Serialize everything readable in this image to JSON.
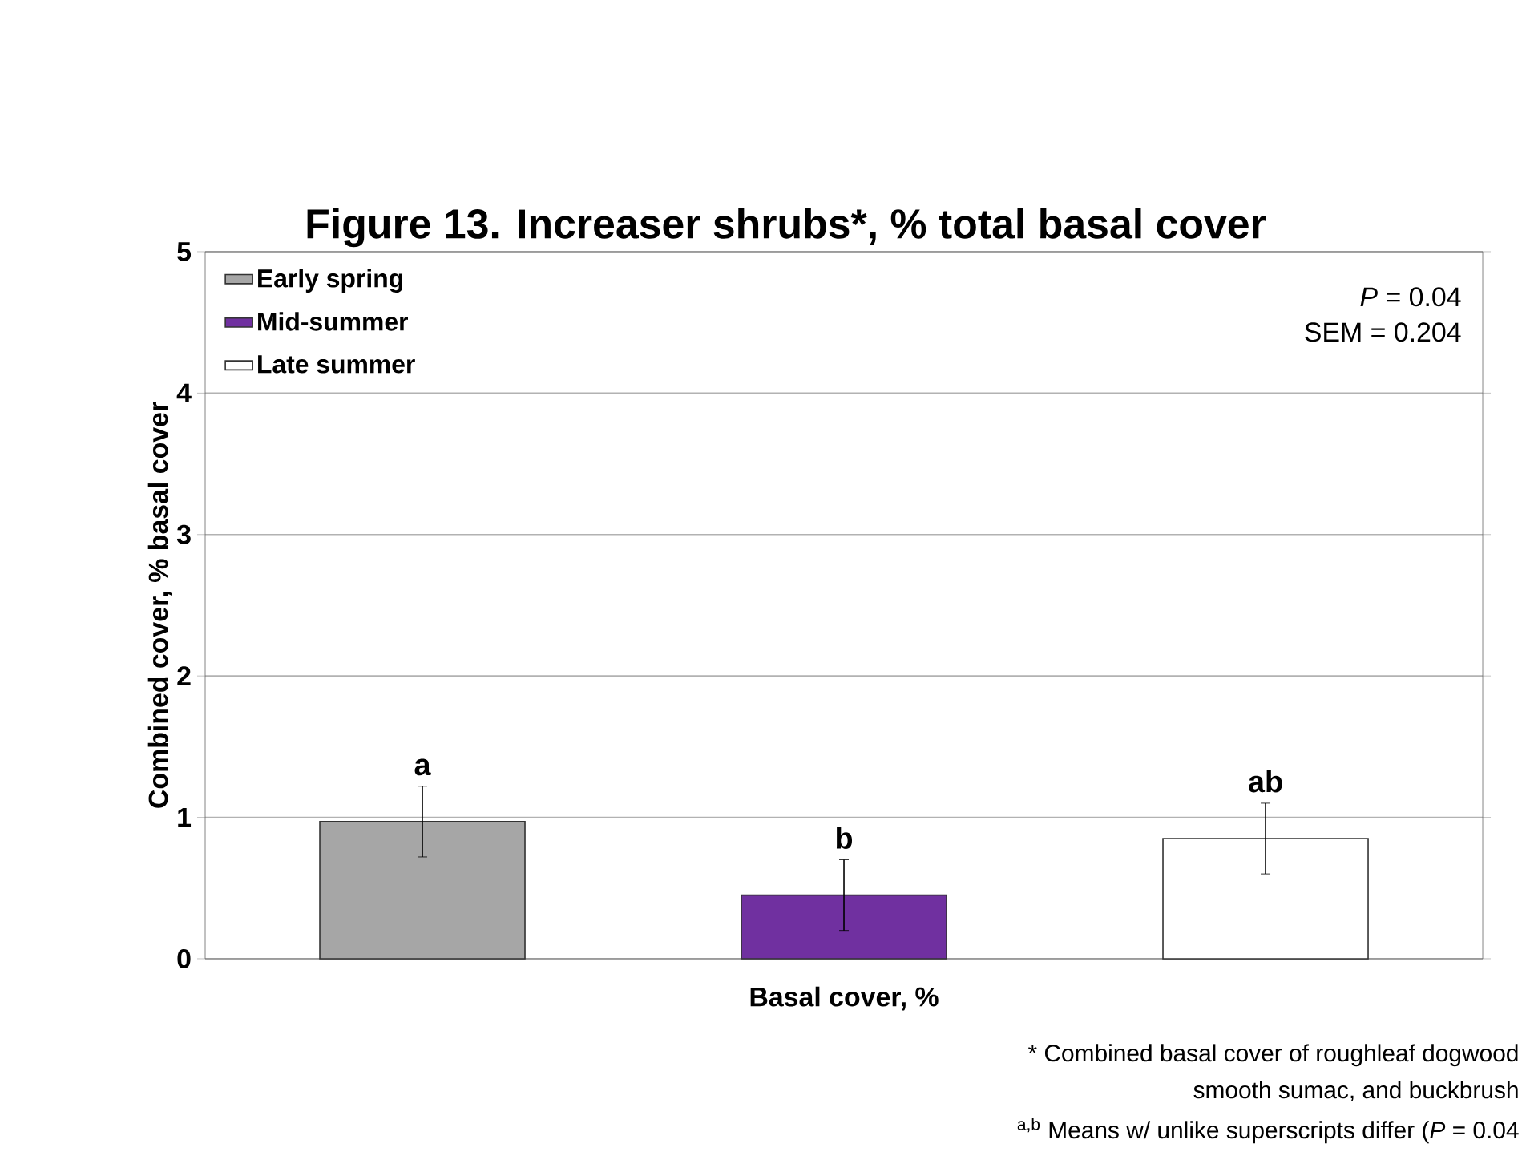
{
  "chart_data": {
    "type": "bar",
    "title": "Figure 13. Increaser shrubs*, % total basal cover",
    "xlabel": "Basal cover, %",
    "ylabel": "Combined cover, % basal cover",
    "categories": [
      null
    ],
    "series": [
      {
        "name": "Early spring",
        "color": "#a6a6a6",
        "values": [
          0.97
        ],
        "errors": [
          0.25
        ],
        "value_labels": [
          "a"
        ]
      },
      {
        "name": "Mid-summer",
        "color": "#7030a0",
        "values": [
          0.45
        ],
        "errors": [
          0.25
        ],
        "value_labels": [
          "b"
        ]
      },
      {
        "name": "Late summer",
        "color": "#ffffff",
        "values": [
          0.85
        ],
        "errors": [
          0.25
        ],
        "value_labels": [
          "ab"
        ]
      }
    ],
    "ylim": [
      0,
      5
    ],
    "yticks": [
      0,
      1,
      2,
      3,
      4,
      5
    ],
    "grid": "y",
    "legend": "top left",
    "annotations": [
      "*P* = 0.04",
      "SEM = 0.204",
      "* Combined basal cover of roughleaf dogwood",
      "smooth sumac, and buckbrush",
      "$^{a,b}$ Means w/ unlike superscripts differ (*P* = 0.04"
    ]
  }
}
